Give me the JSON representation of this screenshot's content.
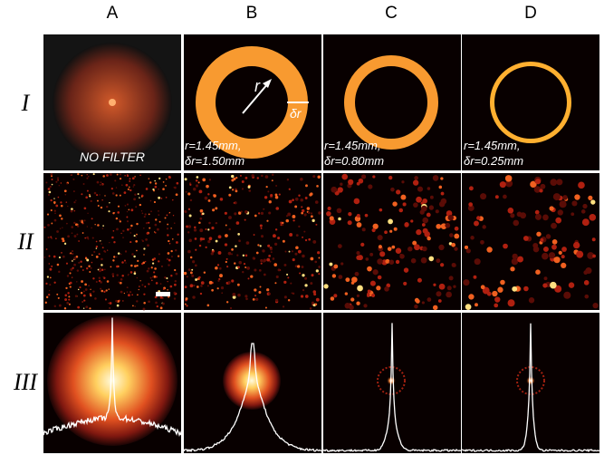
{
  "columns": [
    "A",
    "B",
    "C",
    "D"
  ],
  "rows": [
    "I",
    "II",
    "III"
  ],
  "panels": {
    "a1": {
      "caption": "NO FILTER"
    },
    "b1": {
      "radius_label": "r",
      "width_label": "δr",
      "caption_lines": [
        "r=1.45mm,",
        "δr=1.50mm"
      ]
    },
    "c1": {
      "caption_lines": [
        "r=1.45mm,",
        "δr=0.80mm"
      ]
    },
    "d1": {
      "caption_lines": [
        "r=1.45mm,",
        "δr=0.25mm"
      ]
    }
  }
}
